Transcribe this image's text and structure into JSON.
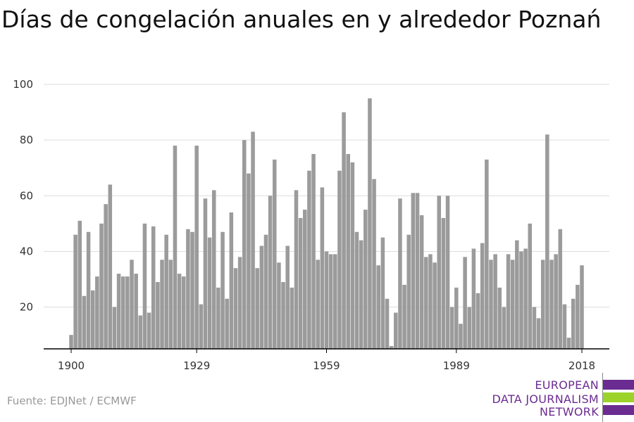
{
  "title": "Días de congelación anuales en y alrededor Poznań",
  "source": "Fuente: EDJNet / ECMWF",
  "logo": {
    "lines": [
      "EUROPEAN",
      "DATA JOURNALISM",
      "NETWORK"
    ],
    "colors": [
      "#6b2c91",
      "#9bd32b",
      "#6b2c91"
    ]
  },
  "colors": {
    "bar": "#9b9b9b",
    "grid": "#dddddd",
    "axis": "#000000"
  },
  "chart_data": {
    "type": "bar",
    "title": "Días de congelación anuales en y alrededor Poznań",
    "xlabel": "",
    "ylabel": "",
    "xlim": [
      1900,
      2018
    ],
    "ylim": [
      5,
      100
    ],
    "yticks": [
      20,
      40,
      60,
      80,
      100
    ],
    "xticks": [
      1900,
      1929,
      1959,
      1989,
      2018
    ],
    "grid": true,
    "x": [
      1900,
      1901,
      1902,
      1903,
      1904,
      1905,
      1906,
      1907,
      1908,
      1909,
      1910,
      1911,
      1912,
      1913,
      1914,
      1915,
      1916,
      1917,
      1918,
      1919,
      1920,
      1921,
      1922,
      1923,
      1924,
      1925,
      1926,
      1927,
      1928,
      1929,
      1930,
      1931,
      1932,
      1933,
      1934,
      1935,
      1936,
      1937,
      1938,
      1939,
      1940,
      1941,
      1942,
      1943,
      1944,
      1945,
      1946,
      1947,
      1948,
      1949,
      1950,
      1951,
      1952,
      1953,
      1954,
      1955,
      1956,
      1957,
      1958,
      1959,
      1960,
      1961,
      1962,
      1963,
      1964,
      1965,
      1966,
      1967,
      1968,
      1969,
      1970,
      1971,
      1972,
      1973,
      1974,
      1975,
      1976,
      1977,
      1978,
      1979,
      1980,
      1981,
      1982,
      1983,
      1984,
      1985,
      1986,
      1987,
      1988,
      1989,
      1990,
      1991,
      1992,
      1993,
      1994,
      1995,
      1996,
      1997,
      1998,
      1999,
      2000,
      2001,
      2002,
      2003,
      2004,
      2005,
      2006,
      2007,
      2008,
      2009,
      2010,
      2011,
      2012,
      2013,
      2014,
      2015,
      2016,
      2017,
      2018
    ],
    "values": [
      10,
      46,
      51,
      24,
      47,
      26,
      31,
      50,
      57,
      64,
      20,
      32,
      31,
      31,
      37,
      32,
      17,
      50,
      18,
      49,
      29,
      37,
      46,
      37,
      78,
      32,
      31,
      48,
      47,
      78,
      21,
      59,
      45,
      62,
      27,
      47,
      23,
      54,
      34,
      38,
      80,
      68,
      83,
      34,
      42,
      46,
      60,
      73,
      36,
      29,
      42,
      27,
      62,
      52,
      55,
      69,
      75,
      37,
      63,
      40,
      39,
      39,
      69,
      90,
      75,
      72,
      47,
      44,
      55,
      95,
      66,
      35,
      45,
      23,
      6,
      18,
      59,
      28,
      46,
      61,
      61,
      53,
      38,
      39,
      36,
      60,
      52,
      60,
      20,
      27,
      14,
      38,
      20,
      41,
      25,
      43,
      73,
      37,
      39,
      27,
      20,
      39,
      37,
      44,
      40,
      41,
      50,
      20,
      16,
      37,
      82,
      37,
      39,
      48,
      21,
      9,
      23,
      28,
      35
    ]
  }
}
